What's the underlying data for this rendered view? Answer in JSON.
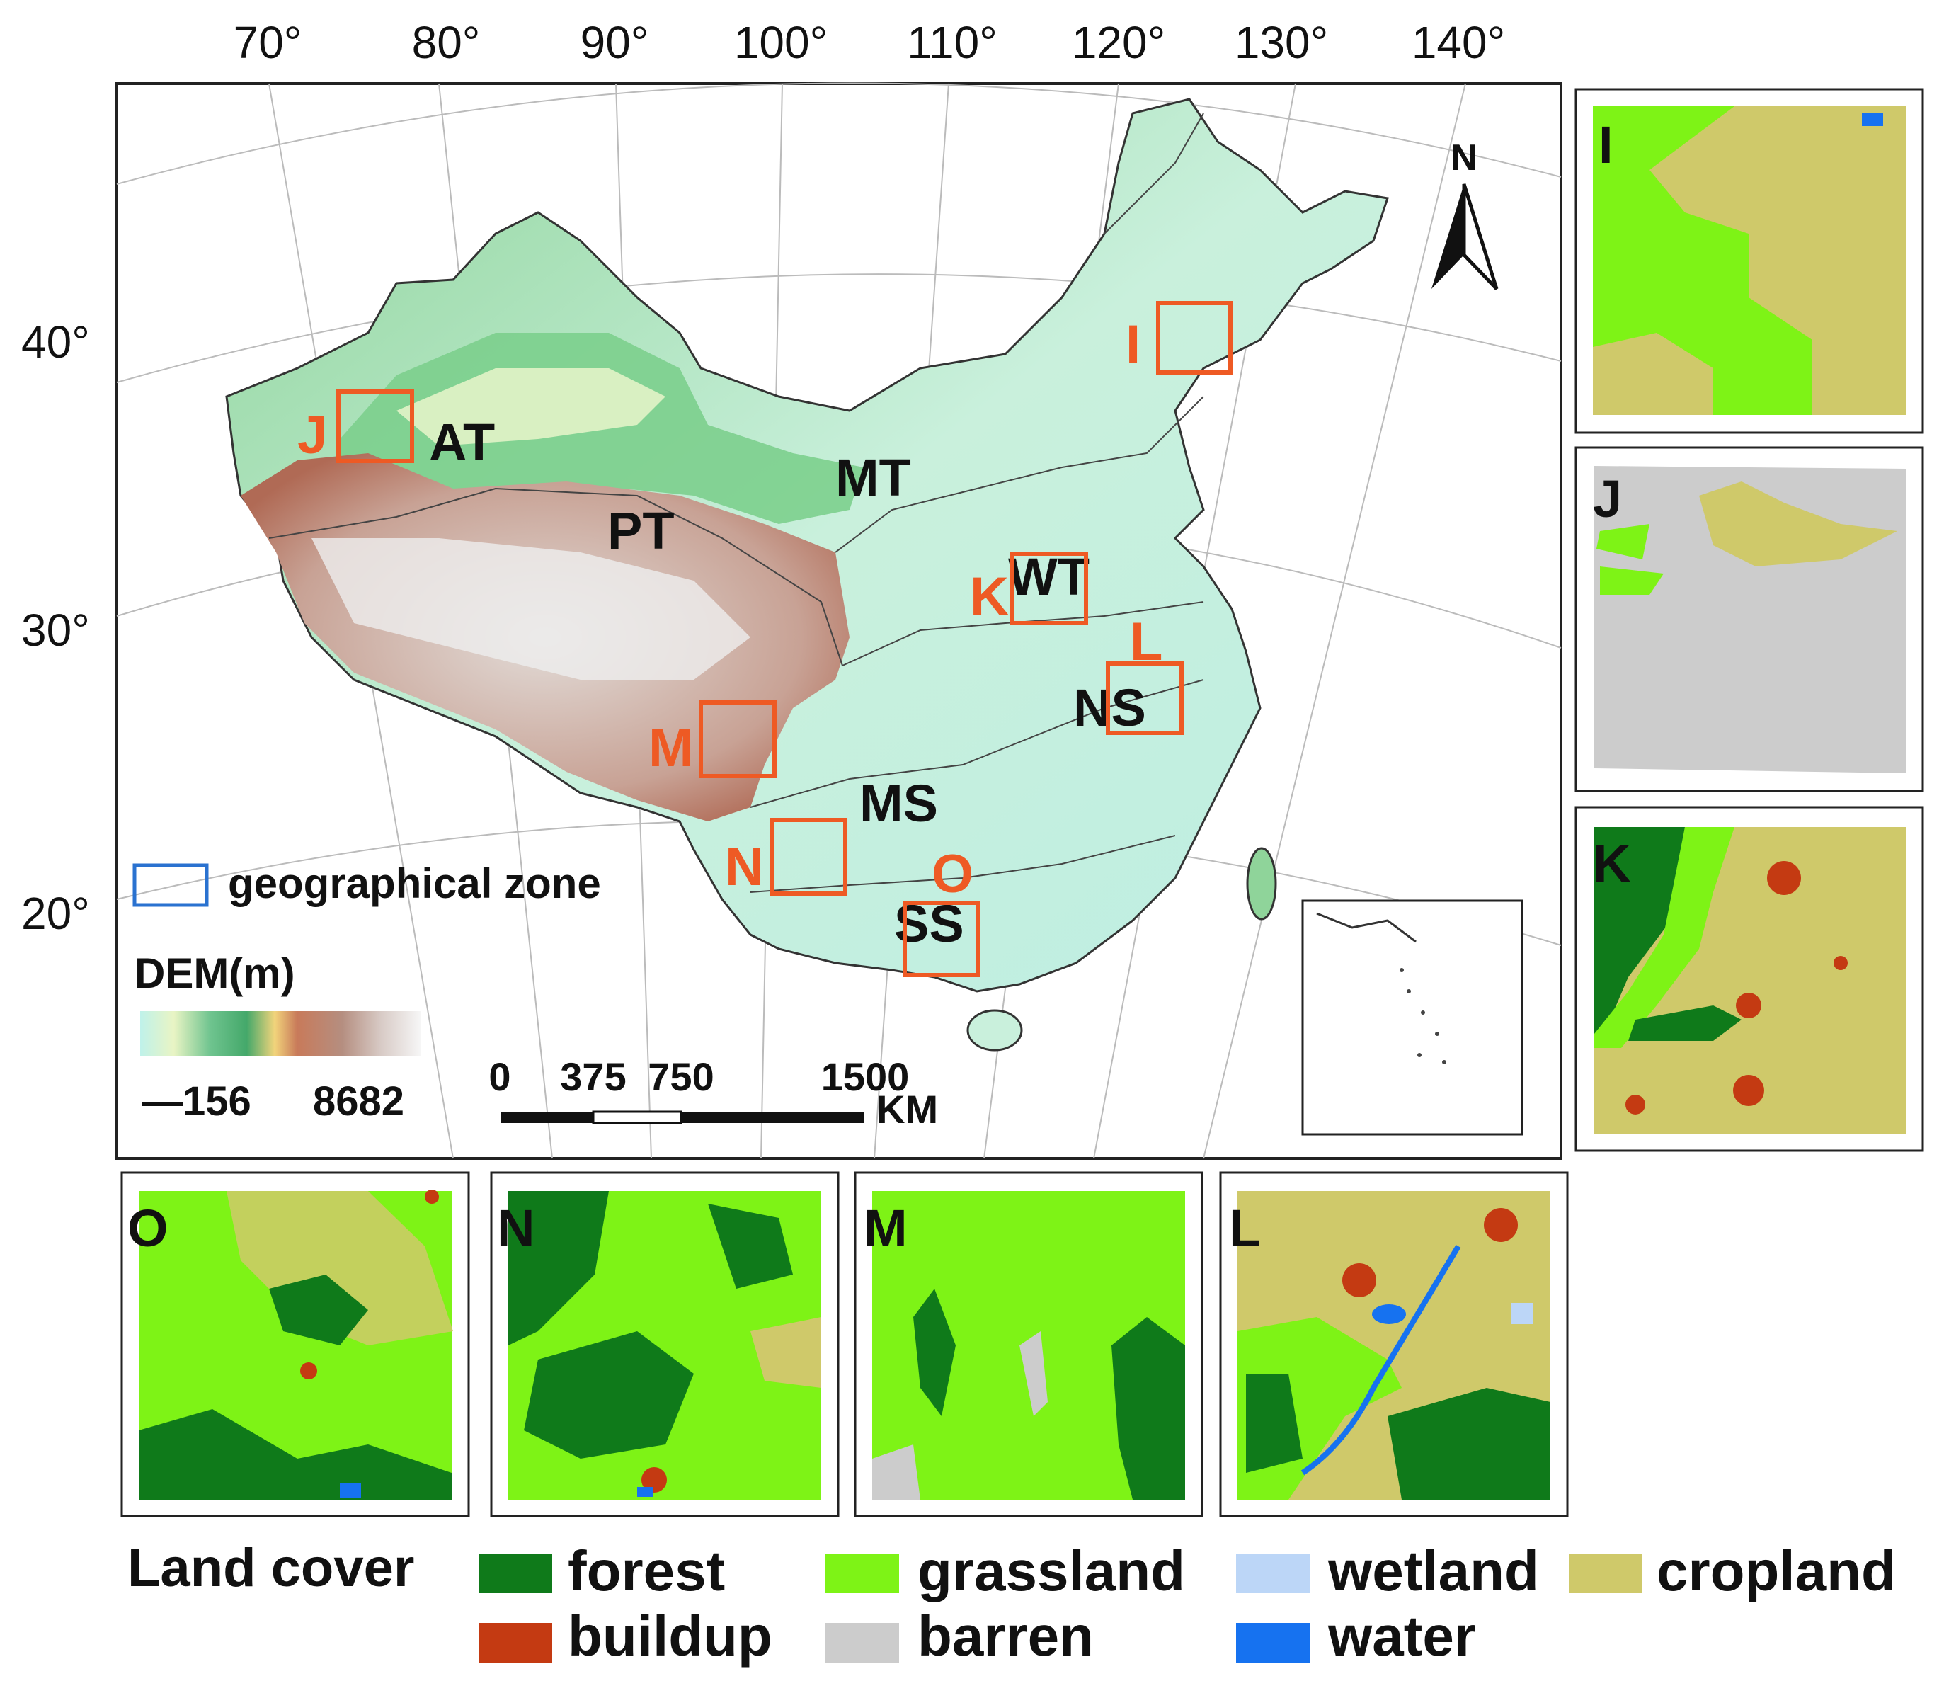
{
  "map": {
    "longitude_labels": [
      "70°",
      "80°",
      "90°",
      "100°",
      "110°",
      "120°",
      "130°",
      "140°"
    ],
    "latitude_labels": [
      "40°",
      "30°",
      "20°"
    ],
    "north_label": "N",
    "zones": [
      "AT",
      "MT",
      "PT",
      "WT",
      "MS",
      "NS",
      "SS"
    ],
    "study_sites": [
      "I",
      "J",
      "K",
      "L",
      "M",
      "N",
      "O"
    ],
    "zone_legend_label": "geographical zone",
    "dem": {
      "title": "DEM(m)",
      "min_label": "—156",
      "max_label": "8682"
    },
    "scale_bar": {
      "ticks": [
        "0",
        "375",
        "750",
        "1500"
      ],
      "unit": "KM"
    }
  },
  "panels": {
    "I": "I",
    "J": "J",
    "K": "K",
    "O": "O",
    "N": "N",
    "M": "M",
    "L": "L"
  },
  "land_cover_legend": {
    "title": "Land cover",
    "items": [
      {
        "label": "forest",
        "color": "#0f7a1a"
      },
      {
        "label": "buildup",
        "color": "#c43a12"
      },
      {
        "label": "grassland",
        "color": "#7ef316"
      },
      {
        "label": "barren",
        "color": "#cccccc"
      },
      {
        "label": "wetland",
        "color": "#bcd6f7"
      },
      {
        "label": "water",
        "color": "#1672f0"
      },
      {
        "label": "cropland",
        "color": "#cfc96a"
      }
    ]
  },
  "colors": {
    "site_box": "#ee5a24",
    "zone_box": "#2a72d0",
    "forest": "#0f7a1a",
    "grassland": "#7ef316",
    "cropland": "#cfc96a",
    "buildup": "#c43a12",
    "water": "#1672f0",
    "wetland": "#bcd6f7",
    "barren": "#cccccc"
  }
}
